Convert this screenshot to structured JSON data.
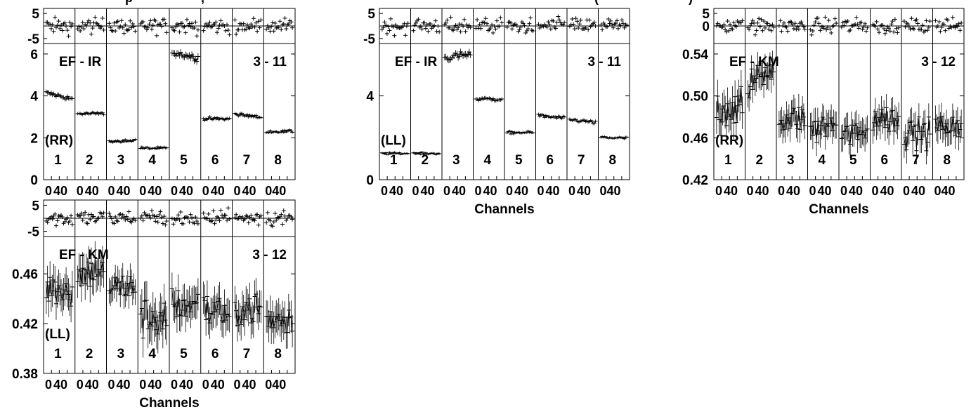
{
  "figure": {
    "header_fragments": [
      "p",
      ",",
      "(",
      ")"
    ]
  },
  "colors": {
    "ink": "#000000",
    "background": "#ffffff"
  },
  "chart_data": [
    {
      "id": "ef-ir-rr",
      "type": "scatter",
      "title": "EF - IR",
      "subtitle": "3 - 11",
      "polarization_label": "(RR)",
      "xlabel": "",
      "channel_tick_labels": [
        "0",
        "40"
      ],
      "residual_panel": {
        "yticks": [
          5,
          -5
        ],
        "ylim": [
          -7,
          7
        ]
      },
      "main_panel": {
        "yticks": [
          0,
          2,
          4,
          6
        ],
        "ylim": [
          0,
          6.5
        ]
      },
      "segments": [
        {
          "label": "1",
          "mean": 4.0,
          "trend": -0.3,
          "scatter": 0.08
        },
        {
          "label": "2",
          "mean": 3.15,
          "trend": 0.0,
          "scatter": 0.06
        },
        {
          "label": "3",
          "mean": 1.85,
          "trend": 0.0,
          "scatter": 0.05
        },
        {
          "label": "4",
          "mean": 1.5,
          "trend": 0.0,
          "scatter": 0.05
        },
        {
          "label": "5",
          "mean": 5.95,
          "trend": -0.3,
          "scatter": 0.12
        },
        {
          "label": "6",
          "mean": 2.9,
          "trend": 0.0,
          "scatter": 0.06
        },
        {
          "label": "7",
          "mean": 3.05,
          "trend": -0.15,
          "scatter": 0.06
        },
        {
          "label": "8",
          "mean": 2.3,
          "trend": 0.0,
          "scatter": 0.05
        }
      ]
    },
    {
      "id": "ef-ir-ll",
      "type": "scatter",
      "title": "EF - IR",
      "subtitle": "3 - 11",
      "polarization_label": "(LL)",
      "xlabel": "Channels",
      "channel_tick_labels": [
        "0",
        "40"
      ],
      "residual_panel": {
        "yticks": [
          5,
          -5
        ],
        "ylim": [
          -7,
          7
        ]
      },
      "main_panel": {
        "yticks": [
          0,
          4
        ],
        "ylim": [
          0,
          6.5
        ]
      },
      "segments": [
        {
          "label": "1",
          "mean": 1.25,
          "trend": 0.0,
          "scatter": 0.04
        },
        {
          "label": "2",
          "mean": 1.25,
          "trend": 0.0,
          "scatter": 0.04
        },
        {
          "label": "3",
          "mean": 5.9,
          "trend": 0.2,
          "scatter": 0.12
        },
        {
          "label": "4",
          "mean": 3.85,
          "trend": 0.0,
          "scatter": 0.07
        },
        {
          "label": "5",
          "mean": 2.25,
          "trend": 0.0,
          "scatter": 0.05
        },
        {
          "label": "6",
          "mean": 3.0,
          "trend": -0.1,
          "scatter": 0.06
        },
        {
          "label": "7",
          "mean": 2.8,
          "trend": -0.15,
          "scatter": 0.06
        },
        {
          "label": "8",
          "mean": 2.0,
          "trend": -0.05,
          "scatter": 0.05
        }
      ]
    },
    {
      "id": "ef-km-rr",
      "type": "scatter",
      "title": "EF - KM",
      "subtitle": "3 - 12",
      "polarization_label": "(RR)",
      "xlabel": "Channels",
      "channel_tick_labels": [
        "0",
        "40"
      ],
      "residual_panel": {
        "yticks": [
          5,
          0
        ],
        "ylim": [
          -7,
          7
        ]
      },
      "main_panel": {
        "yticks": [
          0.42,
          0.46,
          0.5,
          0.54
        ],
        "ylim": [
          0.42,
          0.55
        ]
      },
      "segments": [
        {
          "label": "1",
          "mean": 0.488,
          "trend": 0.0,
          "scatter": 0.012
        },
        {
          "label": "2",
          "mean": 0.52,
          "trend": 0.02,
          "scatter": 0.01
        },
        {
          "label": "3",
          "mean": 0.478,
          "trend": 0.0,
          "scatter": 0.01
        },
        {
          "label": "4",
          "mean": 0.47,
          "trend": 0.0,
          "scatter": 0.01
        },
        {
          "label": "5",
          "mean": 0.465,
          "trend": 0.0,
          "scatter": 0.01
        },
        {
          "label": "6",
          "mean": 0.478,
          "trend": 0.0,
          "scatter": 0.01
        },
        {
          "label": "7",
          "mean": 0.465,
          "trend": 0.0,
          "scatter": 0.01
        },
        {
          "label": "8",
          "mean": 0.472,
          "trend": 0.005,
          "scatter": 0.01
        }
      ]
    },
    {
      "id": "ef-km-ll",
      "type": "scatter",
      "title": "EF - KM",
      "subtitle": "3 - 12",
      "polarization_label": "(LL)",
      "xlabel": "Channels",
      "channel_tick_labels": [
        "0",
        "40"
      ],
      "residual_panel": {
        "yticks": [
          5,
          -5
        ],
        "ylim": [
          -7,
          7
        ]
      },
      "main_panel": {
        "yticks": [
          0.38,
          0.42,
          0.46
        ],
        "ylim": [
          0.38,
          0.49
        ]
      },
      "segments": [
        {
          "label": "1",
          "mean": 0.448,
          "trend": 0.0,
          "scatter": 0.01
        },
        {
          "label": "2",
          "mean": 0.462,
          "trend": 0.008,
          "scatter": 0.01
        },
        {
          "label": "3",
          "mean": 0.45,
          "trend": 0.0,
          "scatter": 0.008
        },
        {
          "label": "4",
          "mean": 0.425,
          "trend": 0.0,
          "scatter": 0.012
        },
        {
          "label": "5",
          "mean": 0.435,
          "trend": 0.0,
          "scatter": 0.01
        },
        {
          "label": "6",
          "mean": 0.43,
          "trend": 0.0,
          "scatter": 0.01
        },
        {
          "label": "7",
          "mean": 0.432,
          "trend": 0.0,
          "scatter": 0.01
        },
        {
          "label": "8",
          "mean": 0.425,
          "trend": 0.0,
          "scatter": 0.01
        }
      ]
    }
  ]
}
